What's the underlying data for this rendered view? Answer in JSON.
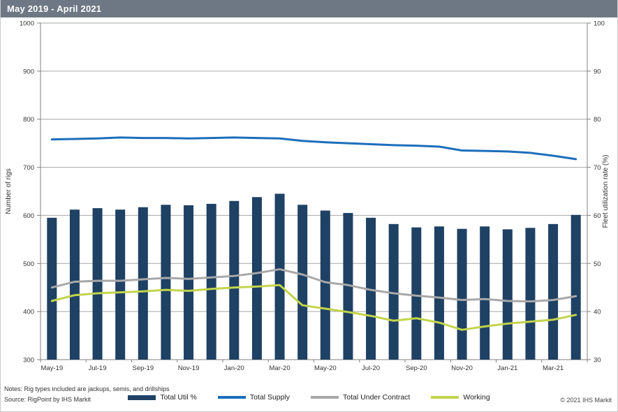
{
  "header": {
    "title": "May 2019 - April 2021"
  },
  "footer": {
    "notes": "Notes: Rig types included are jackups, semis, and drillships",
    "source": "Source: RigPoint by IHS Markit",
    "copyright": "© 2021 IHS Markit"
  },
  "colors": {
    "header_bg": "#6d7884",
    "grid": "#a6a6a6",
    "axis": "#808080",
    "tick_text": "#333333",
    "bar_navy": "#1e4164",
    "supply_blue": "#1c6ebb",
    "contract_gray": "#a8a8a8",
    "working_green": "#c2d44b"
  },
  "chart_data": {
    "type": "bar",
    "subtype": "combo-bar-line-dual-axis",
    "title": "May 2019 - April 2021",
    "grid": true,
    "legend_position": "bottom",
    "categories": [
      "May-19",
      "Jun-19",
      "Jul-19",
      "Aug-19",
      "Sep-19",
      "Oct-19",
      "Nov-19",
      "Dec-19",
      "Jan-20",
      "Feb-20",
      "Mar-20",
      "Apr-20",
      "May-20",
      "Jun-20",
      "Jul-20",
      "Aug-20",
      "Sep-20",
      "Oct-20",
      "Nov-20",
      "Dec-20",
      "Jan-21",
      "Feb-21",
      "Mar-21",
      "Apr-21"
    ],
    "x_tick_labels": [
      "May-19",
      "Jul-19",
      "Sep-19",
      "Nov-19",
      "Jan-20",
      "Mar-20",
      "May-20",
      "Jul-20",
      "Sep-20",
      "Nov-20",
      "Jan-21",
      "Mar-21"
    ],
    "left_axis": {
      "label": "Number of rigs",
      "min": 300,
      "max": 1000,
      "step": 100
    },
    "right_axis": {
      "label": "Fleet utilization rate (%)",
      "min": 30,
      "max": 100,
      "step": 10
    },
    "series": [
      {
        "name": "Total Util %",
        "type": "bar",
        "axis": "right",
        "color": "#1e4164",
        "values": [
          59.5,
          61.2,
          61.5,
          61.2,
          61.7,
          62.2,
          62.1,
          62.4,
          63.0,
          63.8,
          64.5,
          62.2,
          61.0,
          60.5,
          59.5,
          58.2,
          57.5,
          57.7,
          57.2,
          57.7,
          57.1,
          57.4,
          58.2,
          60.1
        ]
      },
      {
        "name": "Total Supply",
        "type": "line",
        "axis": "left",
        "color": "#1c6ebb",
        "values": [
          758,
          759,
          760,
          762,
          761,
          761,
          760,
          761,
          762,
          761,
          760,
          755,
          752,
          750,
          748,
          746,
          745,
          743,
          735,
          734,
          733,
          730,
          724,
          717
        ]
      },
      {
        "name": "Total Under Contract",
        "type": "line",
        "axis": "left",
        "color": "#a8a8a8",
        "values": [
          450,
          462,
          464,
          464,
          467,
          470,
          468,
          471,
          474,
          480,
          488,
          477,
          461,
          455,
          445,
          438,
          433,
          429,
          424,
          426,
          422,
          421,
          424,
          432
        ]
      },
      {
        "name": "Working",
        "type": "line",
        "axis": "left",
        "color": "#c2d44b",
        "values": [
          422,
          434,
          438,
          440,
          442,
          445,
          443,
          447,
          450,
          452,
          455,
          413,
          406,
          399,
          391,
          381,
          386,
          377,
          362,
          369,
          375,
          379,
          383,
          393
        ]
      }
    ]
  }
}
